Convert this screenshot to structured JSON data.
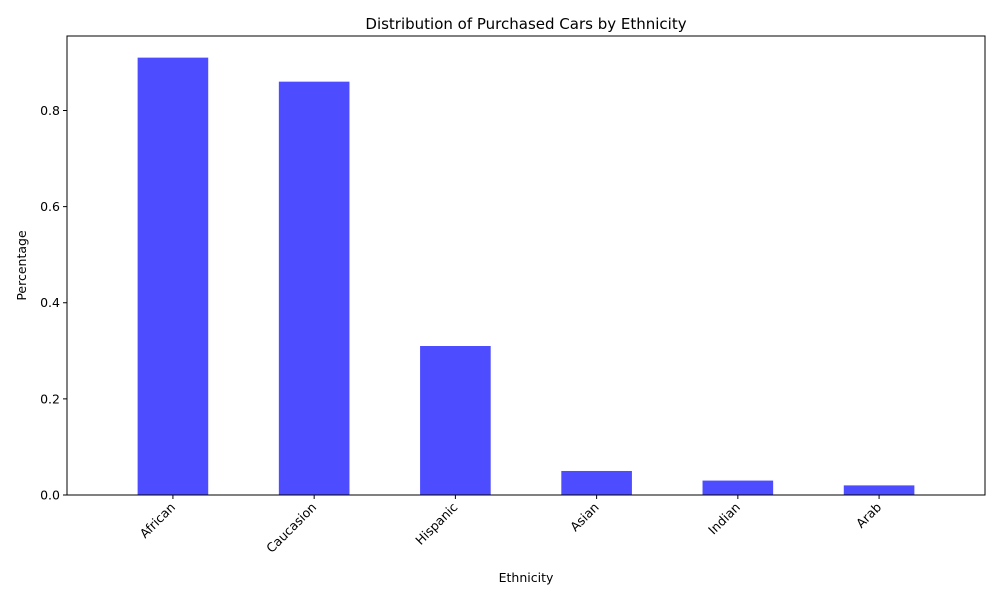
{
  "chart_data": {
    "type": "bar",
    "title": "Distribution of Purchased Cars by Ethnicity",
    "xlabel": "Ethnicity",
    "ylabel": "Percentage",
    "categories": [
      "African",
      "Caucasion",
      "Hispanic",
      "Asian",
      "Indian",
      "Arab"
    ],
    "values": [
      0.91,
      0.86,
      0.31,
      0.05,
      0.03,
      0.02
    ],
    "ylim": [
      0,
      0.955
    ],
    "yticks": [
      0.0,
      0.2,
      0.4,
      0.6,
      0.8
    ],
    "ytick_labels": [
      "0.0",
      "0.2",
      "0.4",
      "0.6",
      "0.8"
    ],
    "bar_color": "#4d4dff",
    "grid": false,
    "legend": false
  }
}
